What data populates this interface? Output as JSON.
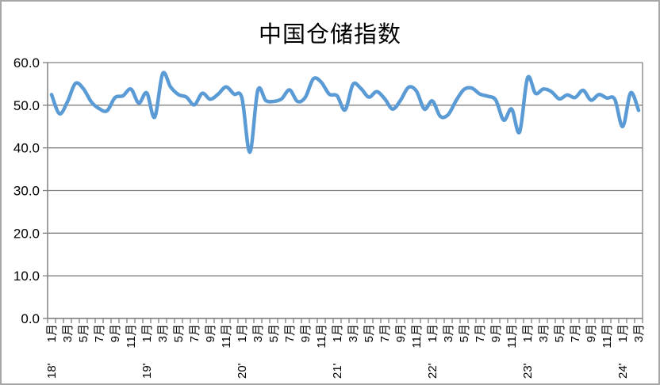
{
  "frame": {
    "background": "#ffffff",
    "border_color": "#a6a6a6"
  },
  "chart_data": {
    "type": "line",
    "title": "中国仓储指数",
    "legend": "none",
    "smooth": true,
    "grid": "horizontal",
    "line_color": "#5b9bd5",
    "grid_color": "#808080",
    "axis_color": "#808080",
    "text_color": "#000000",
    "ylim": [
      0,
      60
    ],
    "ytick_labels": [
      "0.0",
      "10.0",
      "20.0",
      "30.0",
      "40.0",
      "50.0",
      "60.0"
    ],
    "x_axis": {
      "first_point": "18'1月",
      "last_point": "24'3月",
      "month_tick_labels_every_2_months": [
        "1月",
        "3月",
        "5月",
        "7月",
        "9月",
        "11月"
      ],
      "year_labels": [
        "18'",
        "19'",
        "20'",
        "21'",
        "22'",
        "23'",
        "24'"
      ]
    },
    "n_points": 75,
    "series": [
      {
        "name": "中国仓储指数",
        "values": [
          52.5,
          48.0,
          50.8,
          55.1,
          53.9,
          50.8,
          49.2,
          48.7,
          51.8,
          52.2,
          53.8,
          50.5,
          52.9,
          47.2,
          57.4,
          54.3,
          52.5,
          51.9,
          50.1,
          52.8,
          51.4,
          52.6,
          54.3,
          52.6,
          51.7,
          39.0,
          53.5,
          51.1,
          50.9,
          51.5,
          53.6,
          50.9,
          51.9,
          56.2,
          55.4,
          52.6,
          52.2,
          48.9,
          54.9,
          53.9,
          51.9,
          53.2,
          51.5,
          49.1,
          51.2,
          54.2,
          53.3,
          49.1,
          51.0,
          47.4,
          47.8,
          51.1,
          53.7,
          54.0,
          52.6,
          52.1,
          51.2,
          46.5,
          49.1,
          43.7,
          56.4,
          52.8,
          53.8,
          53.2,
          51.5,
          52.4,
          51.8,
          53.5,
          51.2,
          52.5,
          51.7,
          51.4,
          45.0,
          52.9,
          48.8
        ]
      }
    ]
  }
}
